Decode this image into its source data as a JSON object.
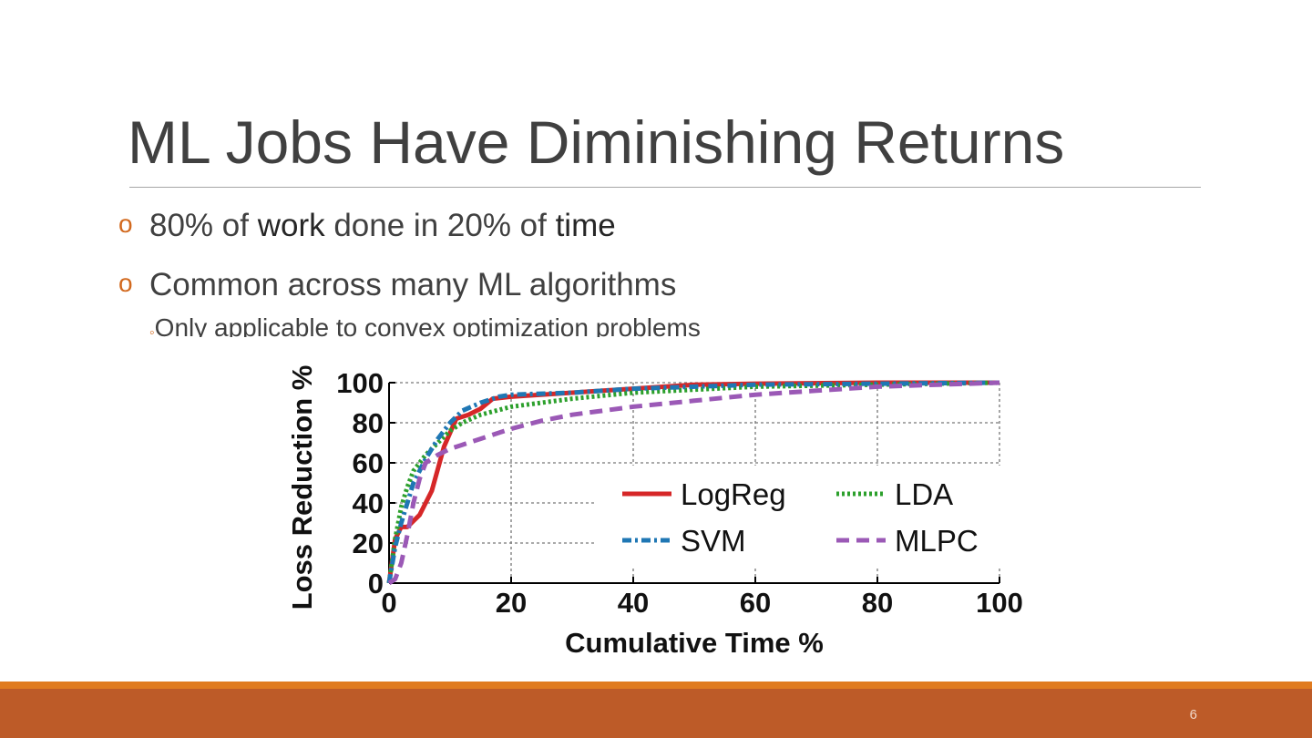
{
  "slide": {
    "title": "ML Jobs Have Diminishing Returns",
    "bullets": [
      {
        "mark": "o",
        "pre": "80% of ",
        "strong1": "work",
        "mid": " done in 20% of ",
        "strong2": "time"
      },
      {
        "mark": "o",
        "text": "Common across many ML algorithms"
      }
    ],
    "sub_bullet": {
      "mark": "◦",
      "text": "Only applicable to convex optimization problems"
    },
    "page_number": "6",
    "colors": {
      "accent": "#d2691e",
      "footer": "#bd5b28",
      "footer_line": "#e07b1f",
      "text": "#404040"
    }
  },
  "chart_data": {
    "type": "line",
    "xlabel": "Cumulative Time %",
    "ylabel": "Loss Reduction %",
    "xlim": [
      0,
      100
    ],
    "ylim": [
      0,
      100
    ],
    "xticks": [
      0,
      20,
      40,
      60,
      80,
      100
    ],
    "yticks": [
      0,
      20,
      40,
      60,
      80,
      100
    ],
    "grid": true,
    "legend_placement": "center-right",
    "series": [
      {
        "name": "LogReg",
        "color": "#d62728",
        "style": "solid",
        "x": [
          0,
          1,
          2,
          3,
          5,
          7,
          9,
          11,
          13,
          15,
          17,
          20,
          30,
          40,
          50,
          60,
          80,
          100
        ],
        "y": [
          0,
          22,
          28,
          28,
          34,
          46,
          68,
          82,
          84,
          87,
          92,
          93,
          95,
          97,
          99,
          99.5,
          100,
          100
        ]
      },
      {
        "name": "LDA",
        "color": "#2ca02c",
        "style": "dotted",
        "x": [
          0,
          1,
          2,
          3,
          4,
          6,
          8,
          10,
          12,
          15,
          20,
          30,
          40,
          60,
          80,
          100
        ],
        "y": [
          0,
          22,
          38,
          48,
          56,
          64,
          70,
          76,
          80,
          84,
          88,
          92,
          95,
          98,
          99,
          100
        ]
      },
      {
        "name": "SVM",
        "color": "#1f77b4",
        "style": "dashdot",
        "x": [
          0,
          1,
          2,
          3,
          4,
          6,
          8,
          10,
          12,
          15,
          18,
          20,
          30,
          40,
          60,
          80,
          100
        ],
        "y": [
          0,
          18,
          30,
          40,
          50,
          62,
          72,
          80,
          86,
          90,
          93,
          94,
          95,
          97,
          99,
          99.5,
          100
        ]
      },
      {
        "name": "MLPC",
        "color": "#9b59b6",
        "style": "dashed",
        "x": [
          0,
          1,
          2,
          3,
          4,
          5,
          6,
          8,
          10,
          12,
          15,
          20,
          25,
          30,
          40,
          50,
          60,
          70,
          80,
          90,
          100
        ],
        "y": [
          0,
          2,
          10,
          24,
          40,
          52,
          60,
          64,
          67,
          69,
          72,
          77,
          81,
          84,
          88,
          91,
          94,
          96,
          98,
          99,
          100
        ]
      }
    ]
  }
}
